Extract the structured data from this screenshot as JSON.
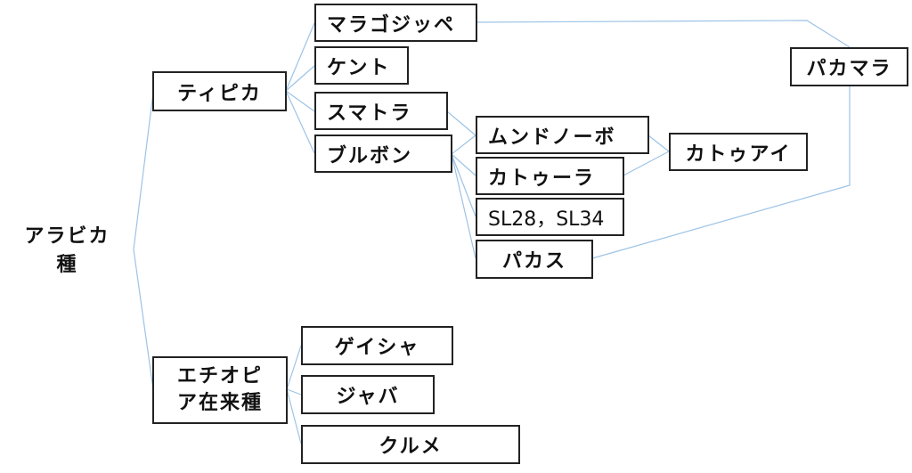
{
  "root": {
    "line1": "アラビカ",
    "line2": "種"
  },
  "nodes": {
    "typica": "ティピカ",
    "ethiopia_line1": "エチオピ",
    "ethiopia_line2": "ア在来種",
    "maragogype": "マラゴジッペ",
    "kent": "ケント",
    "sumatra": "スマトラ",
    "bourbon": "ブルボン",
    "mundo_novo": "ムンドノーボ",
    "caturra": "カトゥーラ",
    "sl": "SL28，SL34",
    "pacas": "パカス",
    "catuai": "カトゥアイ",
    "pacamara": "パカマラ",
    "geisha": "ゲイシャ",
    "java": "ジャバ",
    "kurume": "クルメ"
  },
  "colors": {
    "link": "#9dc3e6",
    "border": "#222222"
  }
}
